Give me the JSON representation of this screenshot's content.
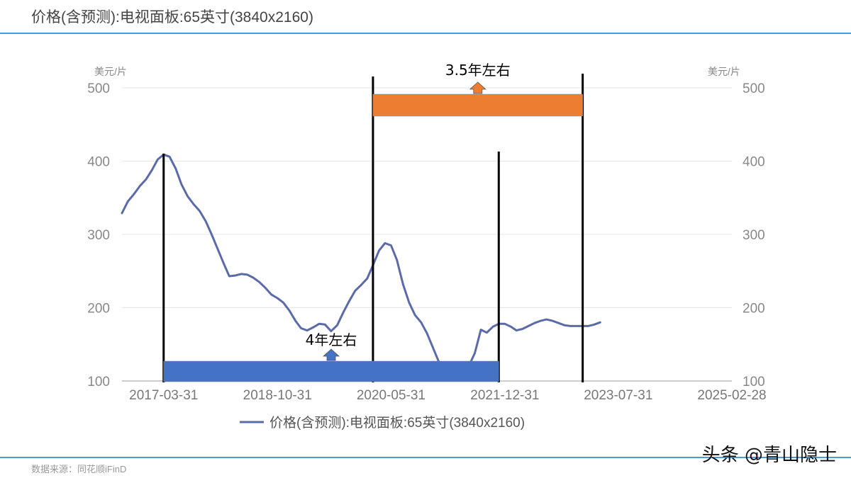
{
  "header": {
    "title": "价格(含预测):电视面板:65英寸(3840x2160)"
  },
  "footer": {
    "source": "数据来源：同花顺iFinD",
    "watermark": "头条 @青山隐士"
  },
  "annotations": [
    {
      "label": "3.5年左右",
      "color": "#ed7d31",
      "from": "2020-02-29",
      "to": "2023-01-31"
    },
    {
      "label": "4年左右",
      "color": "#4472c4",
      "from": "2017-03-31",
      "to": "2021-11-30"
    }
  ],
  "markers": [
    "2017-03-31",
    "2020-02-29",
    "2021-11-30",
    "2023-01-31"
  ],
  "chart_data": {
    "type": "line",
    "title": "价格(含预测):电视面板:65英寸(3840x2160)",
    "ylabel_left": "美元/片",
    "ylabel_right": "美元/片",
    "ylim": [
      100,
      500
    ],
    "yticks": [
      "100",
      "200",
      "300",
      "400",
      "500"
    ],
    "xticks": [
      "2017-03-31",
      "2018-10-31",
      "2020-05-31",
      "2021-12-31",
      "2023-07-31",
      "2025-02-28"
    ],
    "legend": "bottom",
    "series": [
      {
        "name": "价格(含预测):电视面板:65英寸(3840x2160)",
        "color": "#5b6aa8",
        "points": [
          [
            "2016-08-31",
            329
          ],
          [
            "2016-09-30",
            345
          ],
          [
            "2016-10-31",
            355
          ],
          [
            "2016-11-30",
            366
          ],
          [
            "2016-12-31",
            375
          ],
          [
            "2017-01-31",
            388
          ],
          [
            "2017-02-28",
            402
          ],
          [
            "2017-03-31",
            409
          ],
          [
            "2017-04-30",
            406
          ],
          [
            "2017-05-31",
            390
          ],
          [
            "2017-06-30",
            368
          ],
          [
            "2017-07-31",
            352
          ],
          [
            "2017-08-31",
            341
          ],
          [
            "2017-09-30",
            332
          ],
          [
            "2017-10-31",
            318
          ],
          [
            "2017-11-30",
            300
          ],
          [
            "2017-12-31",
            280
          ],
          [
            "2018-01-31",
            260
          ],
          [
            "2018-02-28",
            243
          ],
          [
            "2018-03-31",
            244
          ],
          [
            "2018-04-30",
            246
          ],
          [
            "2018-05-31",
            245
          ],
          [
            "2018-06-30",
            241
          ],
          [
            "2018-07-31",
            235
          ],
          [
            "2018-08-31",
            227
          ],
          [
            "2018-09-30",
            218
          ],
          [
            "2018-10-31",
            213
          ],
          [
            "2018-11-30",
            207
          ],
          [
            "2018-12-31",
            196
          ],
          [
            "2019-01-31",
            182
          ],
          [
            "2019-02-28",
            172
          ],
          [
            "2019-03-31",
            169
          ],
          [
            "2019-04-30",
            173
          ],
          [
            "2019-05-31",
            178
          ],
          [
            "2019-06-30",
            177
          ],
          [
            "2019-07-31",
            168
          ],
          [
            "2019-08-31",
            176
          ],
          [
            "2019-09-30",
            193
          ],
          [
            "2019-10-31",
            209
          ],
          [
            "2019-11-30",
            223
          ],
          [
            "2019-12-31",
            231
          ],
          [
            "2020-01-31",
            240
          ],
          [
            "2020-02-29",
            258
          ],
          [
            "2020-03-31",
            278
          ],
          [
            "2020-04-30",
            288
          ],
          [
            "2020-05-31",
            285
          ],
          [
            "2020-06-30",
            265
          ],
          [
            "2020-07-31",
            232
          ],
          [
            "2020-08-31",
            207
          ],
          [
            "2020-09-30",
            190
          ],
          [
            "2020-10-31",
            180
          ],
          [
            "2020-11-30",
            165
          ],
          [
            "2020-12-31",
            145
          ],
          [
            "2021-01-31",
            125
          ],
          [
            "2021-02-28",
            112
          ],
          [
            "2021-03-31",
            110
          ],
          [
            "2021-04-30",
            114
          ],
          [
            "2021-05-31",
            116
          ],
          [
            "2021-06-30",
            120
          ],
          [
            "2021-07-31",
            138
          ],
          [
            "2021-08-31",
            170
          ],
          [
            "2021-09-30",
            166
          ],
          [
            "2021-10-31",
            174
          ],
          [
            "2021-11-30",
            178
          ],
          [
            "2021-12-31",
            178
          ],
          [
            "2022-01-31",
            174
          ],
          [
            "2022-02-28",
            169
          ],
          [
            "2022-03-31",
            171
          ],
          [
            "2022-04-30",
            175
          ],
          [
            "2022-05-31",
            179
          ],
          [
            "2022-06-30",
            182
          ],
          [
            "2022-07-31",
            184
          ],
          [
            "2022-08-31",
            182
          ],
          [
            "2022-09-30",
            179
          ],
          [
            "2022-10-31",
            176
          ],
          [
            "2022-11-30",
            175
          ],
          [
            "2022-12-31",
            175
          ],
          [
            "2023-01-31",
            175
          ],
          [
            "2023-02-28",
            175
          ],
          [
            "2023-03-31",
            177
          ],
          [
            "2023-04-30",
            180
          ]
        ]
      }
    ]
  }
}
